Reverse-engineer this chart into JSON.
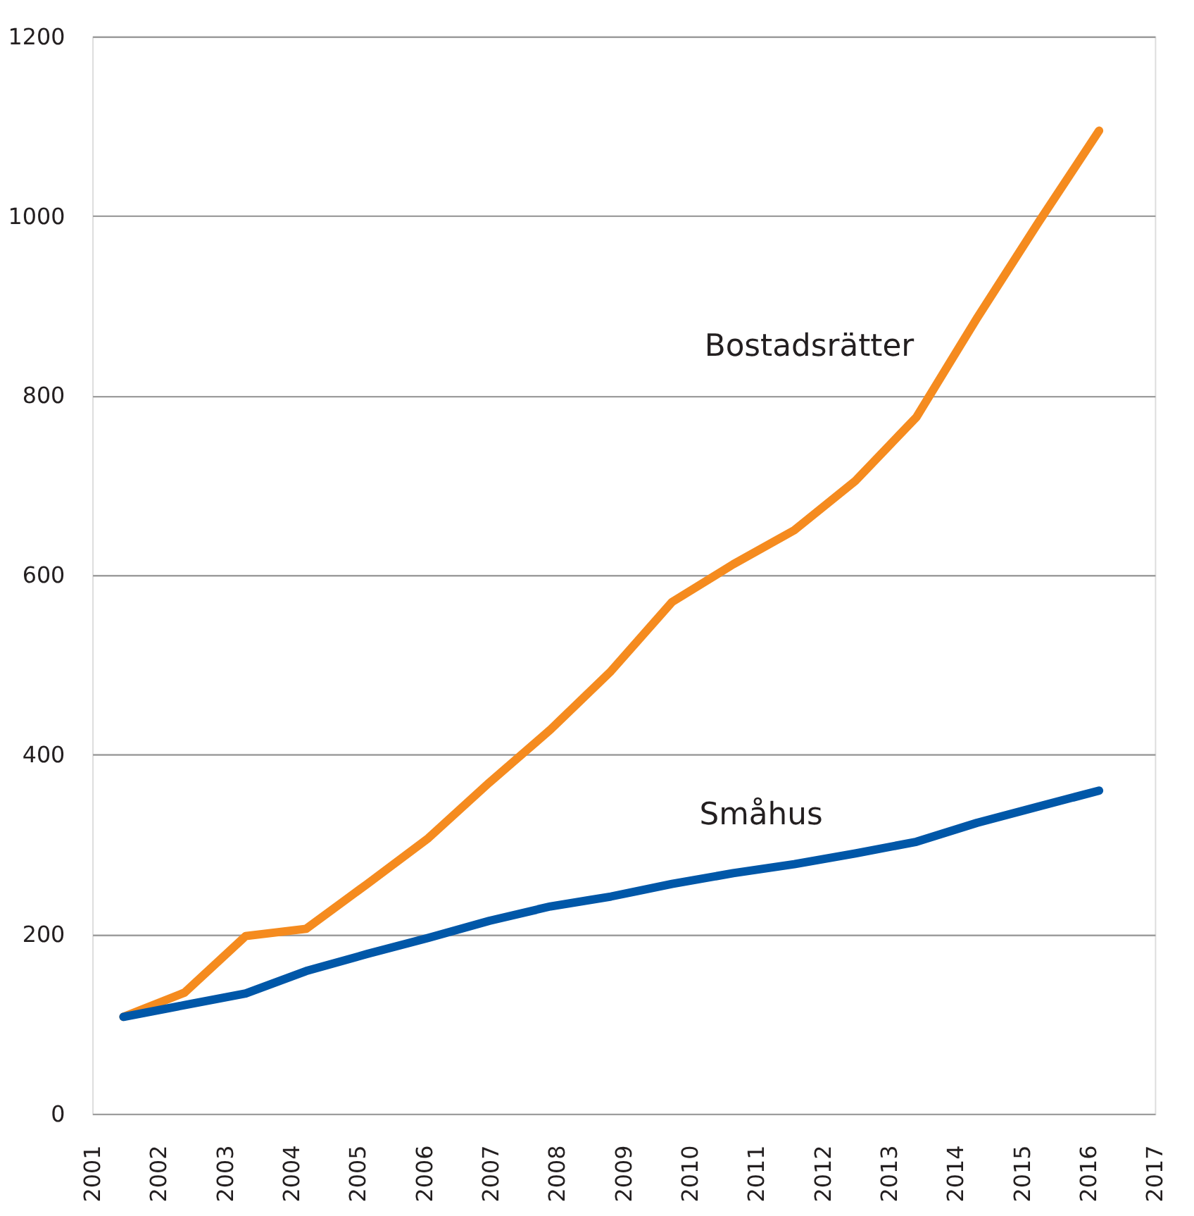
{
  "chart_data": {
    "type": "line",
    "x": [
      2001.47,
      2002.39,
      2003.31,
      2004.22,
      2005.14,
      2006.06,
      2006.98,
      2007.9,
      2008.81,
      2009.73,
      2010.65,
      2011.57,
      2012.49,
      2013.41,
      2014.32,
      2015.24,
      2016.16
    ],
    "series": [
      {
        "name": "Bostadsrätter",
        "color": "#f58b1f",
        "values": [
          108,
          135,
          198,
          206,
          256,
          307,
          369,
          428,
          493,
          570,
          612,
          650,
          705,
          776,
          886,
          992,
          1095
        ]
      },
      {
        "name": "Småhus",
        "color": "#0057a8",
        "values": [
          108,
          121,
          134,
          159,
          178,
          196,
          215,
          231,
          242,
          256,
          268,
          278,
          290,
          303,
          324,
          342,
          360
        ]
      }
    ],
    "xlim": [
      2001,
      2017
    ],
    "xticks": [
      2001,
      2002,
      2003,
      2004,
      2005,
      2006,
      2007,
      2008,
      2009,
      2010,
      2011,
      2012,
      2013,
      2014,
      2015,
      2016,
      2017
    ],
    "ylim": [
      0,
      1200
    ],
    "yticks": [
      0,
      200,
      400,
      600,
      800,
      1000,
      1200
    ],
    "grid": "y",
    "legend": false,
    "marker": "none",
    "line_style": "solid"
  }
}
